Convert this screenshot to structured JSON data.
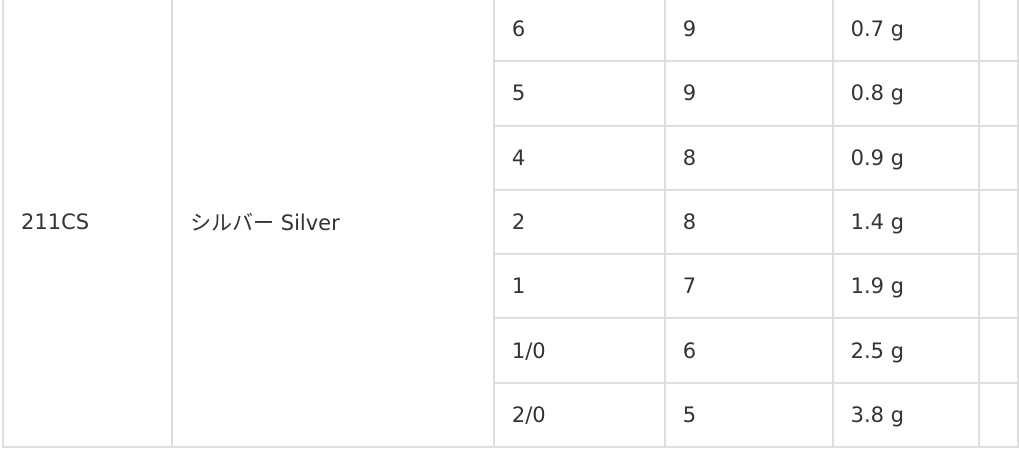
{
  "table": {
    "model": "211CS",
    "color": "シルバー Silver",
    "rows": [
      {
        "size": "6",
        "qty": "9",
        "weight": "0.7 g"
      },
      {
        "size": "5",
        "qty": "9",
        "weight": "0.8 g"
      },
      {
        "size": "4",
        "qty": "8",
        "weight": "0.9 g"
      },
      {
        "size": "2",
        "qty": "8",
        "weight": "1.4 g"
      },
      {
        "size": "1",
        "qty": "7",
        "weight": "1.9 g"
      },
      {
        "size": "1/0",
        "qty": "6",
        "weight": "2.5 g"
      },
      {
        "size": "2/0",
        "qty": "5",
        "weight": "3.8 g"
      }
    ]
  }
}
